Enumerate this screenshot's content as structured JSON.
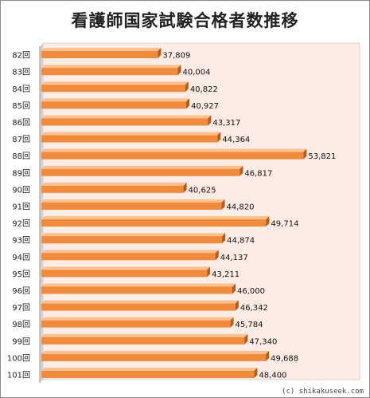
{
  "chart_data": {
    "type": "bar",
    "orientation": "horizontal",
    "title": "看護師国家試験合格者数推移",
    "categories": [
      "82回",
      "83回",
      "84回",
      "85回",
      "86回",
      "87回",
      "88回",
      "89回",
      "90回",
      "91回",
      "92回",
      "93回",
      "94回",
      "95回",
      "96回",
      "97回",
      "98回",
      "99回",
      "100回",
      "101回"
    ],
    "values": [
      37809,
      40004,
      40822,
      40927,
      43317,
      44364,
      53821,
      46817,
      40625,
      44820,
      49714,
      44874,
      44137,
      43211,
      46000,
      46342,
      45784,
      47340,
      49688,
      48400
    ],
    "value_labels": [
      "37,809",
      "40,004",
      "40,822",
      "40,927",
      "43,317",
      "44,364",
      "53,821",
      "46,817",
      "40,625",
      "44,820",
      "49,714",
      "44,874",
      "44,137",
      "43,211",
      "46,000",
      "46,342",
      "45,784",
      "47,340",
      "49,688",
      "48,400"
    ],
    "xlim": [
      25000,
      60000
    ],
    "grid": false,
    "legend": "none",
    "colors": {
      "bar": "#f08a3c",
      "bar_dark": "#b85a1c",
      "bar_light": "#fbc08e",
      "plot_bg": "#fdebe6"
    }
  },
  "copyright": "(c) shikakuseek.com"
}
